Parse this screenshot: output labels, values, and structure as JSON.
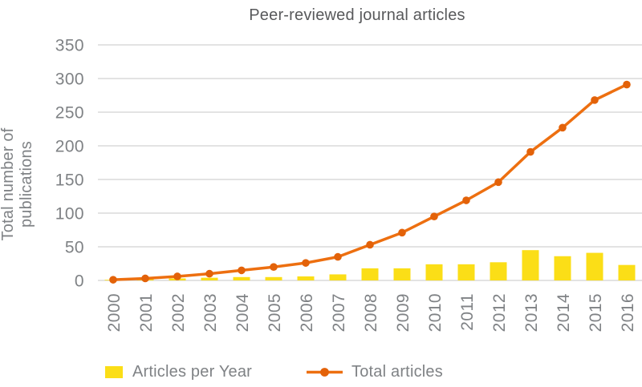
{
  "chart_data": {
    "type": "combo",
    "title": "Peer-reviewed journal articles",
    "ylabel": "Total number of publications",
    "xlabel": "",
    "categories": [
      "2000",
      "2001",
      "2002",
      "2003",
      "2004",
      "2005",
      "2006",
      "2007",
      "2008",
      "2009",
      "2010",
      "2011",
      "2012",
      "2013",
      "2014",
      "2015",
      "2016"
    ],
    "series": [
      {
        "name": "Articles per Year",
        "type": "bar",
        "color": "#FBDE17",
        "values": [
          1,
          2,
          3,
          4,
          5,
          5,
          6,
          9,
          18,
          18,
          24,
          24,
          27,
          45,
          36,
          41,
          23
        ]
      },
      {
        "name": "Total articles",
        "type": "line",
        "color": "#ED6F10",
        "marker_color": "#E36209",
        "values": [
          1,
          3,
          6,
          10,
          15,
          20,
          26,
          35,
          53,
          71,
          95,
          119,
          146,
          191,
          227,
          268,
          291
        ]
      }
    ],
    "ylim": [
      0,
      350
    ],
    "yticks": [
      0,
      50,
      100,
      150,
      200,
      250,
      300,
      350
    ],
    "grid": true,
    "legend_position": "bottom"
  },
  "colors": {
    "background": "#FFFFFF",
    "grid": "#D2D2D2",
    "tick_text": "#7F8285",
    "title_text": "#58595B"
  }
}
